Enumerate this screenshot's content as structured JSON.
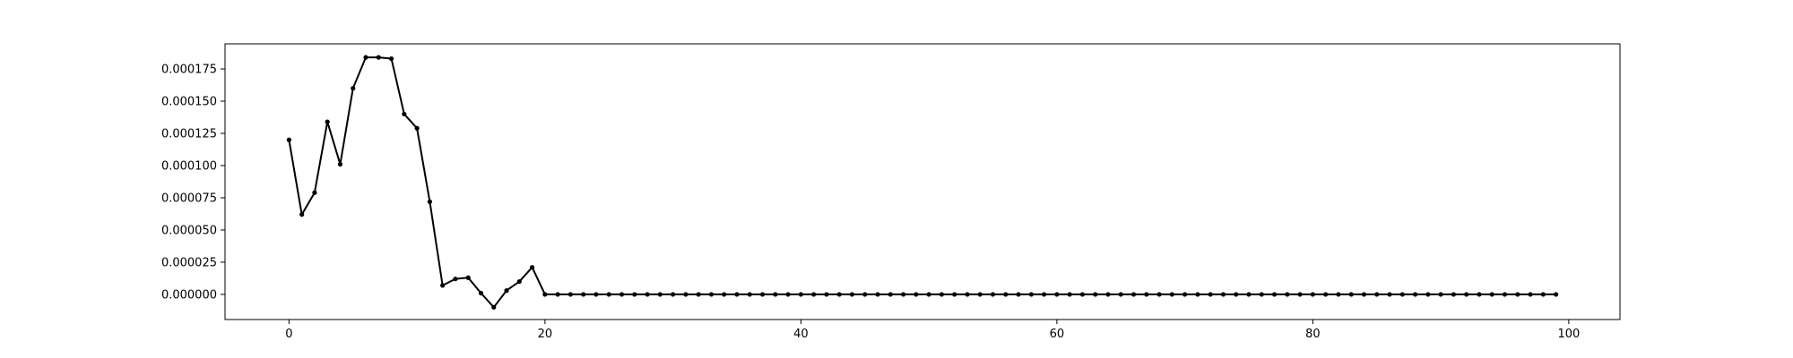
{
  "chart_data": {
    "type": "line",
    "title": "",
    "xlabel": "",
    "ylabel": "",
    "xlim": [
      -5,
      104
    ],
    "ylim": [
      -1.95e-05,
      0.0001945
    ],
    "x_ticks": [
      0,
      20,
      40,
      60,
      80,
      100
    ],
    "x_tick_labels": [
      "0",
      "20",
      "40",
      "60",
      "80",
      "100"
    ],
    "y_ticks": [
      0,
      2.5e-05,
      5e-05,
      7.5e-05,
      0.0001,
      0.000125,
      0.00015,
      0.000175
    ],
    "y_tick_labels": [
      "0.000000",
      "0.000025",
      "0.000050",
      "0.000075",
      "0.000100",
      "0.000125",
      "0.000150",
      "0.000175"
    ],
    "grid": false,
    "line_color": "#000000",
    "series": [
      {
        "x": [
          0,
          1,
          2,
          3,
          4,
          5,
          6,
          7,
          8,
          9,
          10,
          11,
          12,
          13,
          14,
          15,
          16,
          17,
          18,
          19,
          20,
          21,
          22,
          23,
          24,
          25,
          26,
          27,
          28,
          29,
          30,
          31,
          32,
          33,
          34,
          35,
          36,
          37,
          38,
          39,
          40,
          41,
          42,
          43,
          44,
          45,
          46,
          47,
          48,
          49,
          50,
          51,
          52,
          53,
          54,
          55,
          56,
          57,
          58,
          59,
          60,
          61,
          62,
          63,
          64,
          65,
          66,
          67,
          68,
          69,
          70,
          71,
          72,
          73,
          74,
          75,
          76,
          77,
          78,
          79,
          80,
          81,
          82,
          83,
          84,
          85,
          86,
          87,
          88,
          89,
          90,
          91,
          92,
          93,
          94,
          95,
          96,
          97,
          98,
          99
        ],
        "values": [
          0.00012,
          6.2e-05,
          7.9e-05,
          0.000134,
          0.000101,
          0.00016,
          0.000184,
          0.000184,
          0.000183,
          0.00014,
          0.000129,
          7.2e-05,
          7e-06,
          1.2e-05,
          1.3e-05,
          1e-06,
          -1e-05,
          3e-06,
          1e-05,
          2.1e-05,
          0,
          0,
          0,
          0,
          0,
          0,
          0,
          0,
          0,
          0,
          0,
          0,
          0,
          0,
          0,
          0,
          0,
          0,
          0,
          0,
          0,
          0,
          0,
          0,
          0,
          0,
          0,
          0,
          0,
          0,
          0,
          0,
          0,
          0,
          0,
          0,
          0,
          0,
          0,
          0,
          0,
          0,
          0,
          0,
          0,
          0,
          0,
          0,
          0,
          0,
          0,
          0,
          0,
          0,
          0,
          0,
          0,
          0,
          0,
          0,
          0,
          0,
          0,
          0,
          0,
          0,
          0,
          0,
          0,
          0,
          0,
          0,
          0,
          0,
          0,
          0,
          0,
          0,
          0,
          0
        ]
      }
    ]
  }
}
